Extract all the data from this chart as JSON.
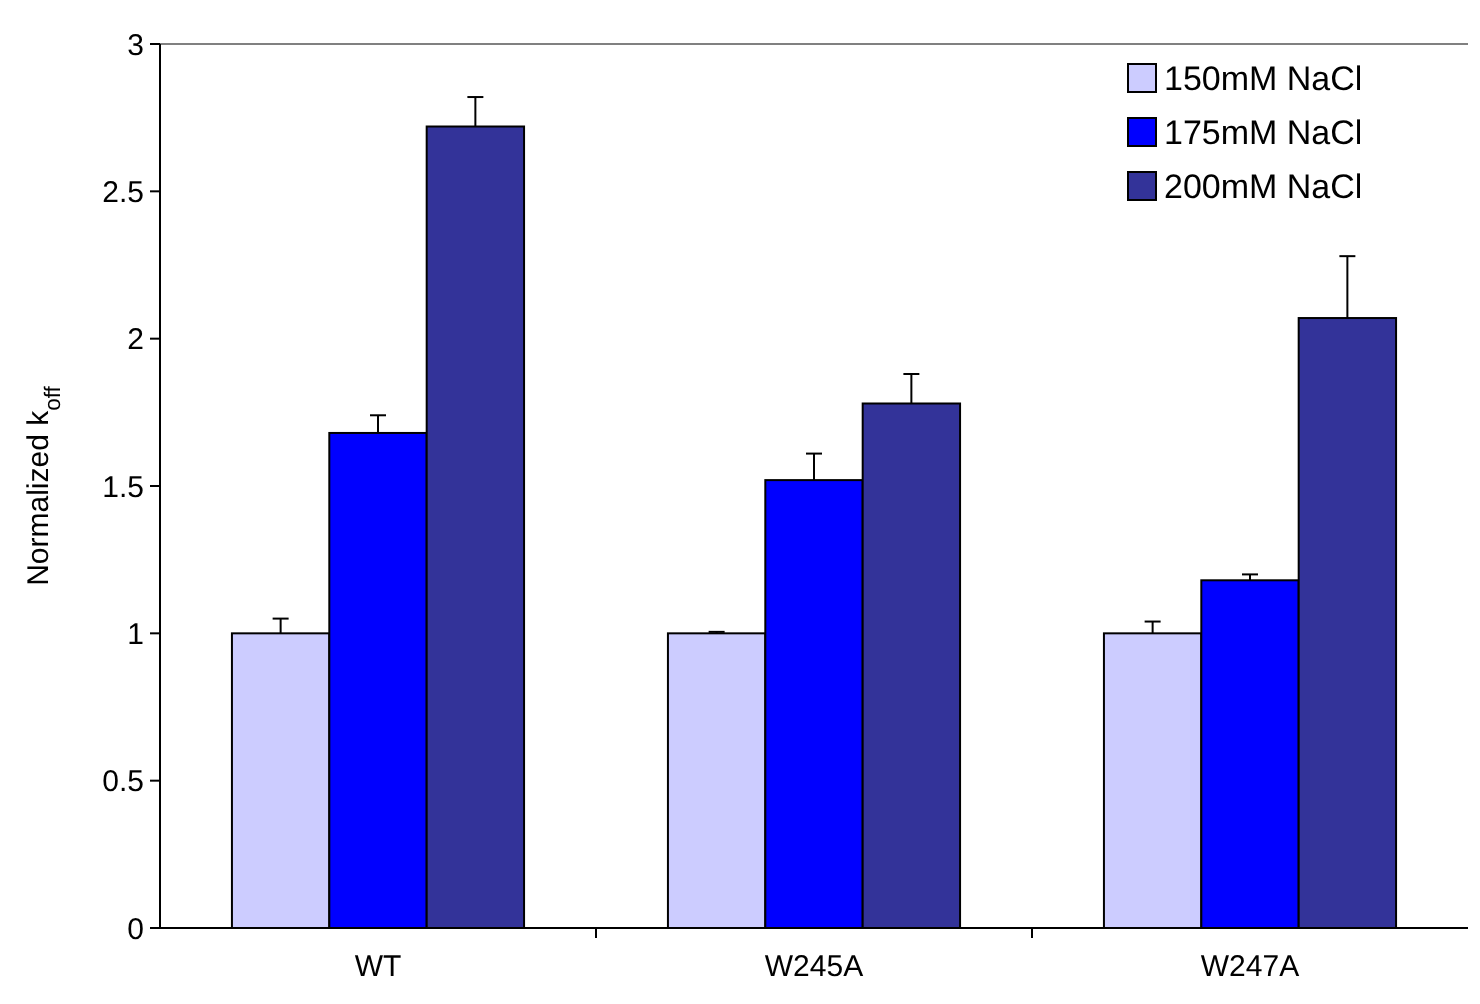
{
  "chart_data": {
    "type": "bar",
    "ylabel": "Normalized k$_{off}$",
    "categories": [
      "WT",
      "W245A",
      "W247A"
    ],
    "series": [
      {
        "name": "150mM NaCl",
        "color": "#ccccff",
        "values": [
          1.0,
          1.0,
          1.0
        ],
        "errors": [
          [
            1.0,
            1.05
          ],
          [
            1.0,
            1.005
          ],
          [
            1.0,
            1.04
          ]
        ]
      },
      {
        "name": "175mM NaCl",
        "color": "#0000ff",
        "values": [
          1.68,
          1.52,
          1.18
        ],
        "errors": [
          [
            1.68,
            1.74
          ],
          [
            1.52,
            1.61
          ],
          [
            1.18,
            1.2
          ]
        ]
      },
      {
        "name": "200mM NaCl",
        "color": "#333399",
        "values": [
          2.72,
          1.78,
          2.07
        ],
        "errors": [
          [
            2.72,
            2.82
          ],
          [
            1.78,
            1.88
          ],
          [
            2.07,
            2.28
          ]
        ]
      }
    ],
    "ylim": [
      0,
      3
    ],
    "yticks": [
      0,
      0.5,
      1,
      1.5,
      2,
      2.5,
      3
    ],
    "legend": "top right",
    "grid": false
  }
}
